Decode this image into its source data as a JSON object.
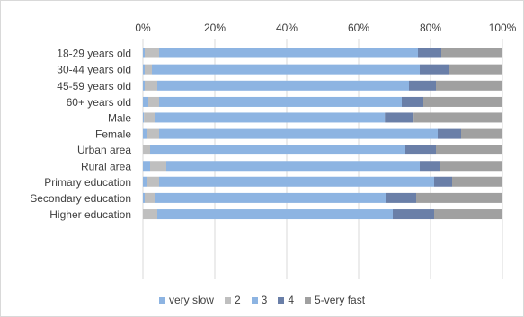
{
  "chart_data": {
    "type": "bar",
    "orientation": "horizontal",
    "stacked": true,
    "percent": true,
    "title": "",
    "xlabel": "",
    "ylabel": "",
    "xlim": [
      0,
      100
    ],
    "xticks": [
      "0%",
      "20%",
      "40%",
      "60%",
      "80%",
      "100%"
    ],
    "xaxis_position": "top",
    "grid": true,
    "legend_position": "bottom",
    "groups": [
      [
        "18-29  years old",
        "30-44  years old",
        "45-59  years old",
        "60+  years old"
      ],
      [
        "Male",
        "Female"
      ],
      [
        "Urban area",
        "Rural area"
      ],
      [
        "Primary education",
        "Secondary education",
        "Higher education"
      ]
    ],
    "categories": [
      "18-29  years old",
      "30-44  years old",
      "45-59  years old",
      "60+  years old",
      "Male",
      "Female",
      "Urban area",
      "Rural area",
      "Primary education",
      "Secondary education",
      "Higher education"
    ],
    "series": [
      {
        "name": "very slow",
        "color": "#8db4e2",
        "values": [
          0.5,
          0.5,
          0.5,
          1.5,
          0.3,
          1.0,
          0.0,
          2.0,
          1.0,
          0.5,
          0.0
        ]
      },
      {
        "name": "2",
        "color": "#bfbfbf",
        "values": [
          4.0,
          2.0,
          3.5,
          3.0,
          3.0,
          3.5,
          2.0,
          4.5,
          3.5,
          3.0,
          4.0
        ]
      },
      {
        "name": "3",
        "color": "#8db4e2",
        "values": [
          72.0,
          74.5,
          70.0,
          67.5,
          64.0,
          77.5,
          71.0,
          70.5,
          76.5,
          64.0,
          65.5
        ]
      },
      {
        "name": "4",
        "color": "#6a7fa8",
        "values": [
          6.5,
          8.0,
          7.5,
          6.0,
          8.0,
          6.5,
          8.5,
          5.5,
          5.0,
          8.5,
          11.5
        ]
      },
      {
        "name": "5-very fast",
        "color": "#a0a0a0",
        "values": [
          17.0,
          15.0,
          18.5,
          22.0,
          24.7,
          11.5,
          18.5,
          17.5,
          14.0,
          24.0,
          19.0
        ]
      }
    ]
  },
  "colors": {
    "grid": "#d9d9d9",
    "axis_text": "#404040"
  },
  "legend": {
    "items": [
      {
        "name": "very slow",
        "color": "#8db4e2"
      },
      {
        "name": "2",
        "color": "#bfbfbf"
      },
      {
        "name": "3",
        "color": "#8db4e2"
      },
      {
        "name": "4",
        "color": "#6a7fa8"
      },
      {
        "name": "5-very fast",
        "color": "#a0a0a0"
      }
    ]
  }
}
